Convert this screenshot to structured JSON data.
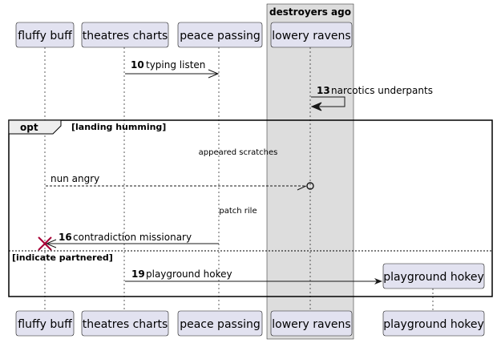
{
  "box": {
    "title": "destroyers ago"
  },
  "participants": {
    "p1": "fluffy buff",
    "p2": "theatres charts",
    "p3": "peace passing",
    "p4": "lowery ravens",
    "p5": "playground hokey"
  },
  "messages": {
    "m10": {
      "num": "10",
      "text": "typing listen"
    },
    "m13": {
      "num": "13",
      "text": "narcotics underpants"
    },
    "divider1": "appeared scratches",
    "nun": "nun angry",
    "divider2": "patch rile",
    "m16": {
      "num": "16",
      "text": "contradiction missionary"
    },
    "m19": {
      "num": "19",
      "text": "playground hokey"
    }
  },
  "fragment": {
    "type": "opt",
    "guard1": "[landing humming]",
    "guard2": "[indicate partnered]"
  },
  "colors": {
    "participant_fill": "#E2E2F0",
    "participant_border": "#181818",
    "box_fill": "#DDDDDD",
    "destroy_mark": "#A80036",
    "lifeline": "#181818"
  }
}
